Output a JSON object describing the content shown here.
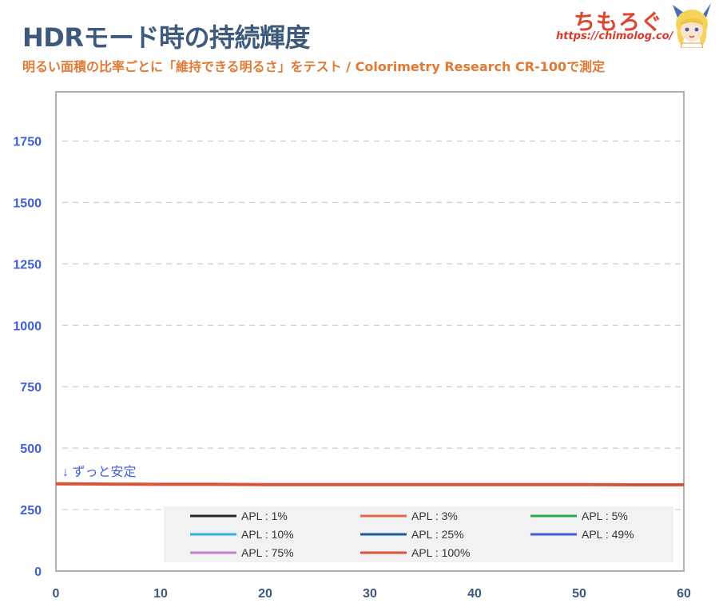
{
  "header": {
    "title": "HDRモード時の持続輝度",
    "subtitle": "明るい面積の比率ごとに「維持できる明るさ」をテスト / Colorimetry Research CR-100で測定"
  },
  "brand": {
    "name": "ちもろぐ",
    "url": "https://chimolog.co/"
  },
  "chart_data": {
    "type": "line",
    "title": "HDRモード時の持続輝度",
    "subtitle": "明るい面積の比率ごとに「維持できる明るさ」をテスト / Colorimetry Research CR-100で測定",
    "xlim": [
      0,
      60
    ],
    "ylim": [
      0,
      1950
    ],
    "x_ticks": [
      0,
      10,
      20,
      30,
      40,
      50,
      60
    ],
    "y_ticks": [
      0,
      250,
      500,
      750,
      1000,
      1250,
      1500,
      1750
    ],
    "grid": "horizontal-dashed",
    "legend_position": "bottom-center",
    "annotation": "↓ ずっと安定",
    "series": [
      {
        "name": "APL : 1%",
        "color": "#262626",
        "x": [],
        "y": []
      },
      {
        "name": "APL : 3%",
        "color": "#e0694a",
        "x": [],
        "y": []
      },
      {
        "name": "APL : 5%",
        "color": "#2aa84a",
        "x": [],
        "y": []
      },
      {
        "name": "APL : 10%",
        "color": "#2fb3e0",
        "x": [],
        "y": []
      },
      {
        "name": "APL : 25%",
        "color": "#1c5f9e",
        "x": [],
        "y": []
      },
      {
        "name": "APL : 49%",
        "color": "#3f5fd6",
        "x": [],
        "y": []
      },
      {
        "name": "APL : 75%",
        "color": "#c77ed6",
        "x": [],
        "y": []
      },
      {
        "name": "APL : 100%",
        "color": "#d9553a",
        "x": [
          0,
          5,
          10,
          15,
          20,
          25,
          30,
          35,
          40,
          45,
          50,
          55,
          60
        ],
        "y": [
          355,
          354,
          353,
          353,
          352,
          352,
          352,
          352,
          352,
          352,
          352,
          351,
          351
        ]
      }
    ]
  },
  "colors": {
    "title": "#3d5a7c",
    "subtitle": "#e07a35",
    "axis_tick_y": "#3f5fd6",
    "axis_tick_x": "#3d5a7c",
    "annotation": "#3f5fd6",
    "frame": "#b0b0b0"
  }
}
